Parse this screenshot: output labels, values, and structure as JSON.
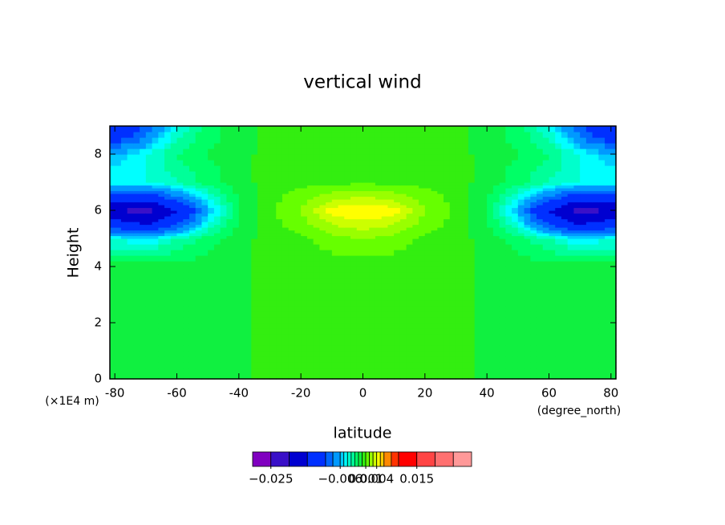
{
  "chart_data": {
    "type": "contour",
    "title": "vertical wind",
    "x_label": "latitude",
    "y_label": "Height",
    "y_unit": "(×1E4 m)",
    "x_unit": "(degree_north)",
    "xlim": [
      -81.6,
      81.6
    ],
    "xticks": [
      -80,
      -60,
      -40,
      -20,
      0,
      20,
      40,
      60,
      80
    ],
    "ylim": [
      0,
      9
    ],
    "yticks": [
      0,
      2,
      4,
      6,
      8
    ],
    "x": [
      -80,
      -70,
      -60,
      -50,
      -40,
      -30,
      -20,
      -10,
      0,
      10,
      20,
      30,
      40,
      50,
      60,
      70,
      80
    ],
    "y": [
      0,
      1,
      2,
      3,
      4,
      5,
      5.5,
      6,
      6.5,
      7,
      8,
      9
    ],
    "z": [
      [
        -0.0005,
        -0.0005,
        -0.0005,
        -0.0005,
        -0.0005,
        0.0005,
        0.0005,
        0.0005,
        0.0005,
        0.0005,
        0.0005,
        0.0005,
        -0.0005,
        -0.0005,
        -0.0005,
        -0.0005,
        -0.0005
      ],
      [
        -0.0005,
        -0.0005,
        -0.0005,
        -0.0005,
        -0.0005,
        0.0005,
        0.0005,
        0.0005,
        0.0005,
        0.0005,
        0.0005,
        0.0005,
        -0.0005,
        -0.0005,
        -0.0005,
        -0.0005,
        -0.0005
      ],
      [
        -0.0005,
        -0.0005,
        -0.0005,
        -0.0005,
        -0.0005,
        0.0005,
        0.0005,
        0.0005,
        0.0005,
        0.0005,
        0.0005,
        0.0005,
        -0.0005,
        -0.0005,
        -0.0005,
        -0.0005,
        -0.0005
      ],
      [
        -0.0005,
        -0.0005,
        -0.0005,
        -0.0005,
        -0.0005,
        0.0005,
        0.0005,
        0.0005,
        0.0005,
        0.0005,
        0.0005,
        0.0005,
        -0.0005,
        -0.0005,
        -0.0005,
        -0.0005,
        -0.0005
      ],
      [
        -0.0005,
        -0.0005,
        -0.0005,
        -0.0005,
        -0.0005,
        0.0005,
        0.0005,
        0.0005,
        0.0005,
        0.0005,
        0.0005,
        0.0005,
        -0.0005,
        -0.0005,
        -0.0005,
        -0.0005,
        -0.0005
      ],
      [
        -0.004,
        -0.005,
        -0.003,
        -0.0015,
        -0.0005,
        0.0005,
        0.0008,
        0.0015,
        0.002,
        0.0015,
        0.0008,
        0.0005,
        -0.0005,
        -0.0015,
        -0.003,
        -0.005,
        -0.004
      ],
      [
        -0.012,
        -0.015,
        -0.01,
        -0.004,
        -0.0008,
        0.0006,
        0.0015,
        0.003,
        0.0035,
        0.003,
        0.0015,
        0.0006,
        -0.0008,
        -0.004,
        -0.01,
        -0.015,
        -0.012
      ],
      [
        -0.02,
        -0.022,
        -0.015,
        -0.006,
        -0.001,
        0.0008,
        0.002,
        0.0045,
        0.005,
        0.0045,
        0.002,
        0.0008,
        -0.001,
        -0.006,
        -0.015,
        -0.022,
        -0.02
      ],
      [
        -0.012,
        -0.012,
        -0.008,
        -0.004,
        -0.0008,
        0.0006,
        0.0015,
        0.0025,
        0.003,
        0.0025,
        0.0015,
        0.0006,
        -0.0008,
        -0.004,
        -0.008,
        -0.012,
        -0.012
      ],
      [
        -0.004,
        -0.004,
        -0.003,
        -0.0015,
        -0.0005,
        0.0005,
        0.0006,
        0.0008,
        0.0008,
        0.0008,
        0.0006,
        0.0005,
        -0.0005,
        -0.0015,
        -0.003,
        -0.004,
        -0.004
      ],
      [
        -0.006,
        -0.004,
        -0.002,
        -0.001,
        -0.0005,
        0.0005,
        0.0005,
        0.0005,
        0.0005,
        0.0005,
        0.0005,
        0.0005,
        -0.0005,
        -0.001,
        -0.002,
        -0.004,
        -0.006
      ],
      [
        -0.015,
        -0.01,
        -0.004,
        -0.0015,
        -0.0005,
        0.0003,
        0.0003,
        0.0003,
        0.0003,
        0.0003,
        0.0003,
        0.0003,
        -0.0005,
        -0.0015,
        -0.004,
        -0.01,
        -0.015
      ]
    ],
    "levels": [
      -0.03,
      -0.025,
      -0.02,
      -0.015,
      -0.01,
      -0.008,
      -0.006,
      -0.005,
      -0.004,
      -0.003,
      -0.002,
      -0.001,
      0,
      0.001,
      0.002,
      0.003,
      0.004,
      0.005,
      0.006,
      0.008,
      0.01,
      0.015,
      0.02,
      0.025,
      0.03
    ],
    "colors": [
      "#8000c0",
      "#3a10c8",
      "#0000d0",
      "#0030ff",
      "#0066ff",
      "#0099ff",
      "#00ccff",
      "#00ffff",
      "#00ffcc",
      "#00ff99",
      "#00ff66",
      "#10f040",
      "#33ee10",
      "#66ff00",
      "#99ff00",
      "#ccff00",
      "#ffff00",
      "#ffcc00",
      "#ff8800",
      "#ff3300",
      "#ff0000",
      "#ff4444",
      "#ff7070",
      "#ff9999"
    ],
    "colorbar_ticks": [
      {
        "value": -0.025,
        "label": "−0.025"
      },
      {
        "value": -0.006,
        "label": "−0.006"
      },
      {
        "value": 0.001,
        "label": "0.001"
      },
      {
        "value": 0.004,
        "label": "0.004"
      },
      {
        "value": 0.015,
        "label": "0.015"
      }
    ]
  }
}
